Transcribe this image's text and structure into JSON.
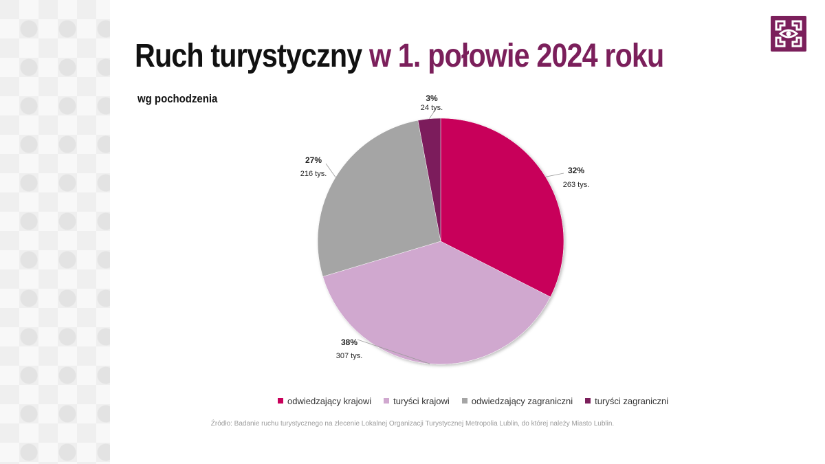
{
  "header": {
    "title_part1": "Ruch turystyczny",
    "title_part2": "w 1. połowie 2024 roku",
    "subtitle": "wg pochodzenia"
  },
  "logo": {
    "icon": "eye-maze-logo-icon",
    "color": "#7b1f5b"
  },
  "chart_data": {
    "type": "pie",
    "categories": [
      "odwiedzający krajowi",
      "turyści krajowi",
      "odwiedzający zagraniczni",
      "turyści zagraniczni"
    ],
    "values": [
      263,
      307,
      216,
      24
    ],
    "percent_labels": [
      "32%",
      "38%",
      "27%",
      "3%"
    ],
    "value_labels": [
      "263 tys.",
      "307 tys.",
      "216 tys.",
      "24 tys."
    ],
    "colors": [
      "#c8005a",
      "#d0a8cf",
      "#a5a5a5",
      "#7b1f5b"
    ],
    "legend_position": "bottom"
  },
  "source": "Źródło: Badanie ruchu turystycznego na zlecenie Lokalnej Organizacji Turystycznej Metropolia Lublin, do której należy Miasto Lublin."
}
